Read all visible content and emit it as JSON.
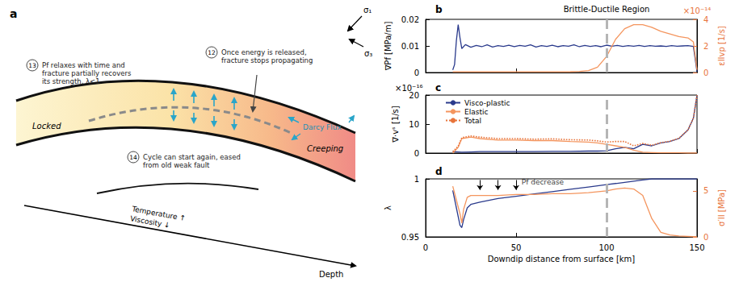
{
  "diagram": {
    "panel_label": "a",
    "stress_labels": [
      "σ₁",
      "σ₃"
    ],
    "callouts": [
      {
        "number": "13",
        "text": "Pf relaxes with time and fracture partially recovers its strength, λ<1"
      },
      {
        "number": "12",
        "text": "Once energy is released, fracture stops propagating"
      },
      {
        "number": "14",
        "text": "Cycle can start again, eased from old weak fault"
      }
    ],
    "labels": {
      "locked": "Locked",
      "creeping": "Creeping",
      "darcy": "Darcy Flux",
      "temperature": "Temperature ↑",
      "viscosity": "Viscosity ↓",
      "depth": "Depth"
    }
  },
  "chart_data": [
    {
      "type": "line",
      "panel_label": "b",
      "ylabel": "∇Pf [MPa/m]",
      "y2label": "εIIvp [1/s]",
      "y2_multiplier": "×10⁻¹⁴",
      "xlim": [
        0,
        150
      ],
      "xticks": [
        0,
        50,
        100,
        150
      ],
      "ylim": [
        0,
        0.02
      ],
      "yticks": [
        0,
        0.01,
        0.02
      ],
      "y2lim": [
        0,
        4
      ],
      "y2ticks": [
        0,
        2,
        4
      ],
      "tick_labels": "y",
      "vline_x": 100,
      "annotations": [
        {
          "text": "Brittle-Ductile Region",
          "x": 100
        }
      ],
      "series": [
        {
          "color": "#2a3a8c",
          "x": [
            15,
            16,
            17,
            18,
            19,
            20,
            22,
            25,
            28,
            31,
            34,
            37,
            40,
            43,
            46,
            49,
            52,
            55,
            58,
            61,
            64,
            67,
            70,
            73,
            76,
            79,
            82,
            85,
            88,
            91,
            94,
            97,
            100,
            103,
            106,
            109,
            112,
            115,
            118,
            121,
            124,
            127,
            130,
            133,
            136,
            139,
            142,
            145,
            148,
            150
          ],
          "values": [
            0.001,
            0.003,
            0.012,
            0.018,
            0.013,
            0.009,
            0.0105,
            0.0095,
            0.0102,
            0.0097,
            0.0104,
            0.0096,
            0.0101,
            0.0098,
            0.0103,
            0.0097,
            0.0102,
            0.0099,
            0.0104,
            0.0096,
            0.0101,
            0.0098,
            0.0103,
            0.0097,
            0.0101,
            0.0099,
            0.0104,
            0.0097,
            0.0102,
            0.0098,
            0.0101,
            0.0097,
            0.0103,
            0.0099,
            0.0102,
            0.0098,
            0.0101,
            0.0099,
            0.0102,
            0.0098,
            0.0101,
            0.0099,
            0.01,
            0.0098,
            0.0101,
            0.0099,
            0.01,
            0.0101,
            0.0098,
            0.0003
          ]
        },
        {
          "color": "#f4955e",
          "axis": "y2",
          "x": [
            15,
            20,
            30,
            40,
            50,
            60,
            70,
            80,
            85,
            90,
            95,
            100,
            105,
            110,
            115,
            120,
            125,
            130,
            135,
            140,
            145,
            148,
            150
          ],
          "values": [
            0.05,
            0.05,
            0.05,
            0.05,
            0.05,
            0.05,
            0.05,
            0.06,
            0.08,
            0.15,
            0.4,
            1.2,
            2.5,
            3.3,
            3.6,
            3.6,
            3.4,
            3.1,
            2.9,
            2.7,
            2.6,
            2.3,
            0.2
          ]
        }
      ]
    },
    {
      "type": "line",
      "panel_label": "c",
      "ylabel": "∇·vˢ [1/s]",
      "y_multiplier": "×10⁻¹⁶",
      "xlim": [
        0,
        150
      ],
      "xticks": [
        0,
        50,
        100,
        150
      ],
      "ylim": [
        0,
        20
      ],
      "yticks": [
        0,
        10,
        20
      ],
      "tick_labels": "y",
      "vline_x": 100,
      "legend": "upper left",
      "series": [
        {
          "name": "Visco-plastic",
          "color": "#2a3a8c",
          "line_style": "solid",
          "x": [
            15,
            18,
            20,
            25,
            30,
            40,
            50,
            60,
            70,
            80,
            90,
            95,
            100,
            105,
            110,
            115,
            120,
            125,
            130,
            135,
            140,
            145,
            148,
            150
          ],
          "values": [
            0.5,
            0.4,
            0.3,
            0.4,
            0.5,
            0.5,
            0.5,
            0.5,
            0.6,
            0.6,
            0.7,
            0.7,
            0.8,
            1.5,
            2,
            1.5,
            3,
            2.5,
            3.5,
            4,
            5,
            8,
            12,
            20
          ]
        },
        {
          "name": "Elastic",
          "color": "#f4955e",
          "line_style": "solid",
          "x": [
            15,
            18,
            20,
            25,
            30,
            40,
            50,
            60,
            70,
            80,
            90,
            95,
            100,
            105,
            110,
            115,
            120,
            125,
            130,
            135,
            140,
            145,
            148,
            150
          ],
          "values": [
            0,
            2,
            5,
            5.5,
            5,
            4.5,
            4.5,
            4.3,
            4.3,
            4,
            3.8,
            3.5,
            3,
            2.5,
            2,
            1,
            0.3,
            0.2,
            0.1,
            0.1,
            0.1,
            0,
            0,
            0
          ]
        },
        {
          "name": "Total",
          "color": "#e8743b",
          "line_style": "dotted",
          "x": [
            15,
            18,
            20,
            25,
            30,
            40,
            50,
            60,
            70,
            80,
            90,
            95,
            100,
            105,
            110,
            115,
            120,
            125,
            130,
            135,
            140,
            145,
            148,
            150
          ],
          "values": [
            0.5,
            2.4,
            5.3,
            5.9,
            5.5,
            5,
            5,
            4.8,
            4.9,
            4.6,
            4.5,
            4.2,
            3.8,
            4,
            4,
            2.5,
            3.3,
            2.7,
            3.6,
            4.1,
            5.1,
            8,
            12,
            20
          ]
        }
      ]
    },
    {
      "type": "line",
      "panel_label": "d",
      "xlabel": "Downdip distance from surface [km]",
      "ylabel": "λ",
      "y2label": "σ′II [MPa]",
      "xlim": [
        0,
        150
      ],
      "xticks": [
        0,
        50,
        100,
        150
      ],
      "ylim": [
        0.95,
        1
      ],
      "yticks": [
        0.95,
        1
      ],
      "y2lim": [
        0,
        6.3
      ],
      "y2ticks": [
        0,
        5
      ],
      "vline_x": 100,
      "annotations": [
        {
          "text": "Pf decrease",
          "x": 53,
          "y": 0.997,
          "arrows_x": [
            30,
            40,
            50
          ],
          "arrows_y": [
            0.999,
            0.9905
          ]
        }
      ],
      "series": [
        {
          "color": "#2a3a8c",
          "x": [
            15,
            17,
            19,
            20,
            21,
            23,
            25,
            30,
            40,
            50,
            60,
            70,
            80,
            90,
            100,
            110,
            120,
            125,
            130,
            140,
            150
          ],
          "values": [
            0.99,
            0.975,
            0.96,
            0.958,
            0.965,
            0.975,
            0.978,
            0.98,
            0.983,
            0.985,
            0.987,
            0.989,
            0.991,
            0.993,
            0.995,
            0.997,
            0.999,
            1,
            1,
            1,
            1
          ]
        },
        {
          "color": "#f4955e",
          "axis": "y2",
          "x": [
            15,
            17,
            19,
            20,
            21,
            23,
            25,
            30,
            40,
            50,
            60,
            70,
            80,
            90,
            100,
            105,
            110,
            115,
            120,
            125,
            130,
            135,
            140,
            150
          ],
          "values": [
            5.5,
            4,
            2.5,
            1.5,
            3,
            4.3,
            4.5,
            4.5,
            4.5,
            4.6,
            4.6,
            4.7,
            4.7,
            4.8,
            5,
            5.2,
            5.3,
            5.2,
            4.5,
            2,
            0.5,
            0.2,
            0.1,
            0
          ]
        }
      ]
    }
  ]
}
